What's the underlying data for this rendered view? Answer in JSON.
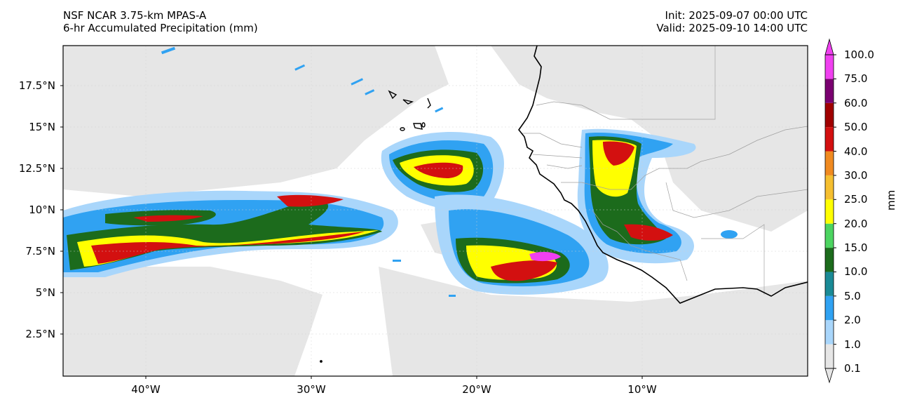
{
  "title": {
    "model": "NSF NCAR 3.75-km MPAS-A",
    "field": "6-hr Accumulated Precipitation (mm)",
    "init": "Init: 2025-09-07 00:00 UTC",
    "valid": "Valid: 2025-09-10 14:00 UTC"
  },
  "axes": {
    "lat_labels": [
      "17.5°N",
      "15°N",
      "12.5°N",
      "10°N",
      "7.5°N",
      "5°N",
      "2.5°N"
    ],
    "lon_labels": [
      "40°W",
      "30°W",
      "20°W",
      "10°W"
    ]
  },
  "colorbar": {
    "unit": "mm",
    "levels": [
      "0.1",
      "1.0",
      "2.0",
      "5.0",
      "10.0",
      "15.0",
      "20.0",
      "25.0",
      "30.0",
      "40.0",
      "50.0",
      "60.0",
      "75.0",
      "100.0"
    ],
    "colors": [
      "#e6e6e6",
      "#a9d6fb",
      "#30a2f2",
      "#1a8a96",
      "#1c6b1c",
      "#4cd460",
      "#ffff00",
      "#f5bf30",
      "#f08a20",
      "#d31010",
      "#a00000",
      "#7a0070",
      "#f040f0"
    ],
    "extend": "both"
  },
  "colors": {
    "land_grey": "#e6e6e6",
    "coastline": "#000000",
    "borders": "#a0a0a0"
  }
}
